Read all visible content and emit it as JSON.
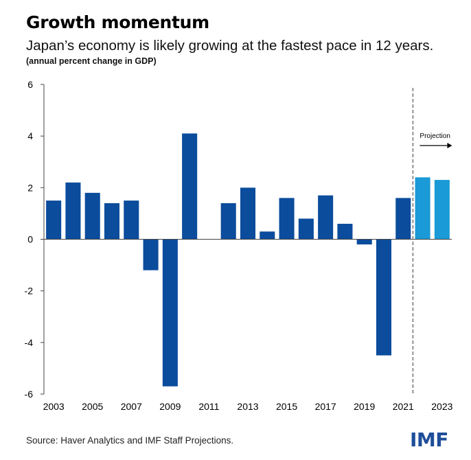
{
  "title": "Growth momentum",
  "subtitle": "Japan’s economy is likely growing at the fastest pace in 12 years.",
  "note": "(annual percent change in GDP)",
  "source": "Source: Haver Analytics and IMF Staff Projections.",
  "logo": "IMF",
  "colors": {
    "actual": "#0b4c9c",
    "projection": "#1a9ad6",
    "axis": "#444444"
  },
  "chart_data": {
    "type": "bar",
    "title": "Growth momentum",
    "subtitle": "Japan’s economy is likely growing at the fastest pace in 12 years.",
    "ylabel": "(annual percent change in GDP)",
    "xlabel": "",
    "ylim": [
      -6,
      6
    ],
    "yticks": [
      6,
      4,
      2,
      0,
      -2,
      -4,
      -6
    ],
    "categories": [
      "2003",
      "2004",
      "2005",
      "2006",
      "2007",
      "2008",
      "2009",
      "2010",
      "2011",
      "2012",
      "2013",
      "2014",
      "2015",
      "2016",
      "2017",
      "2018",
      "2019",
      "2020",
      "2021",
      "2022",
      "2023"
    ],
    "xtick_labels": [
      "2003",
      "2005",
      "2007",
      "2009",
      "2011",
      "2013",
      "2015",
      "2017",
      "2019",
      "2021",
      "2023"
    ],
    "values": [
      1.5,
      2.2,
      1.8,
      1.4,
      1.5,
      -1.2,
      -5.7,
      4.1,
      0.0,
      1.4,
      2.0,
      0.3,
      1.6,
      0.8,
      1.7,
      0.6,
      -0.2,
      -4.5,
      1.6,
      2.4,
      2.3
    ],
    "projection_start": "2022",
    "projection_label": "Projection",
    "grid": false,
    "legend": "none"
  }
}
